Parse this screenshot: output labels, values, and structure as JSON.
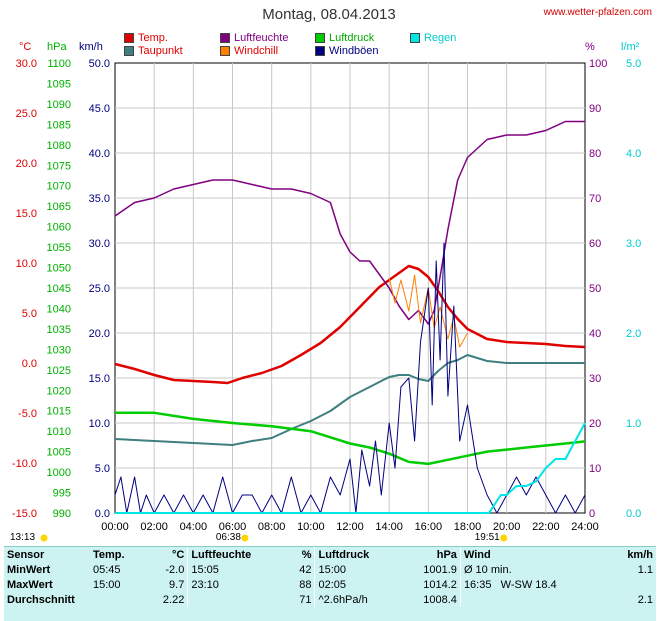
{
  "header": {
    "title": "Montag, 08.04.2013",
    "site": "www.wetter-pfalzen.com"
  },
  "legend": [
    {
      "label": "Temp.",
      "color": "#e00000"
    },
    {
      "label": "Taupunkt",
      "color": "#3f7f7f"
    },
    {
      "label": "Luftfeuchte",
      "color": "#800080"
    },
    {
      "label": "Windchill",
      "color": "#ff8000"
    },
    {
      "label": "Luftdruck",
      "color": "#00cc00"
    },
    {
      "label": "Windböen",
      "color": "#000080"
    },
    {
      "label": "Regen",
      "color": "#00e5e5"
    }
  ],
  "axis_units": {
    "temp": "°C",
    "pressure": "hPa",
    "wind": "km/h",
    "humidity": "%",
    "rain": "l/m²"
  },
  "sun": {
    "sunrise": "06:38",
    "sunset": "19:51",
    "moonrise": "13:13"
  },
  "chart_data": {
    "type": "line",
    "x_ticks": [
      "00:00",
      "02:00",
      "04:00",
      "06:00",
      "08:00",
      "10:00",
      "12:00",
      "14:00",
      "16:00",
      "18:00",
      "20:00",
      "22:00",
      "24:00"
    ],
    "axes": {
      "temp": {
        "min": -15,
        "max": 30,
        "ticks": [
          "30.0",
          "25.0",
          "20.0",
          "15.0",
          "10.0",
          "5.0",
          "0.0",
          "-5.0",
          "-10.0",
          "-15.0"
        ],
        "color": "#e00000"
      },
      "pressure": {
        "min": 990,
        "max": 1100,
        "ticks": [
          "1100",
          "1095",
          "1090",
          "1085",
          "1080",
          "1075",
          "1070",
          "1065",
          "1060",
          "1055",
          "1050",
          "1045",
          "1040",
          "1035",
          "1030",
          "1025",
          "1020",
          "1015",
          "1010",
          "1005",
          "1000",
          "995",
          "990"
        ],
        "color": "#00b000"
      },
      "wind": {
        "min": 0,
        "max": 50,
        "ticks": [
          "50.0",
          "45.0",
          "40.0",
          "35.0",
          "30.0",
          "25.0",
          "20.0",
          "15.0",
          "10.0",
          "5.0",
          "0.0"
        ],
        "color": "#000080"
      },
      "humidity": {
        "min": 0,
        "max": 100,
        "ticks": [
          "100",
          "90",
          "80",
          "70",
          "60",
          "50",
          "40",
          "30",
          "20",
          "10",
          "0"
        ],
        "color": "#800080"
      },
      "rain": {
        "min": 0,
        "max": 5,
        "ticks": [
          "5.0",
          "4.0",
          "3.0",
          "2.0",
          "1.0",
          "0.0"
        ],
        "color": "#00cccc"
      }
    },
    "series": [
      {
        "name": "Temp.",
        "axis": "temp",
        "color": "#e00000",
        "width": 2.5,
        "x": [
          0,
          1,
          2,
          3,
          4,
          5,
          5.75,
          6.5,
          7.5,
          8.5,
          9.5,
          10.5,
          11.5,
          12.5,
          13.5,
          14.5,
          15,
          15.5,
          16,
          16.5,
          17,
          17.5,
          18,
          19,
          20,
          21,
          22,
          23,
          24
        ],
        "y": [
          -0.1,
          -0.6,
          -1.2,
          -1.7,
          -1.8,
          -1.9,
          -2.0,
          -1.5,
          -1.0,
          -0.3,
          0.8,
          2.0,
          3.6,
          5.6,
          7.6,
          9.0,
          9.7,
          9.4,
          8.6,
          7.2,
          5.6,
          4.4,
          3.4,
          2.4,
          2.1,
          2.0,
          1.9,
          1.7,
          1.6
        ]
      },
      {
        "name": "Taupunkt",
        "axis": "temp",
        "color": "#3f7f7f",
        "width": 2,
        "x": [
          0,
          2,
          4,
          6,
          7,
          8,
          9,
          10,
          11,
          12,
          13,
          14,
          14.5,
          15,
          15.5,
          16,
          16.5,
          17,
          17.5,
          18,
          19,
          20,
          21,
          22,
          23,
          24
        ],
        "y": [
          -7.6,
          -7.8,
          -8.0,
          -8.2,
          -7.8,
          -7.5,
          -6.6,
          -5.8,
          -4.8,
          -3.4,
          -2.4,
          -1.4,
          -1.2,
          -1.2,
          -1.6,
          -1.8,
          -0.8,
          0.0,
          0.3,
          0.8,
          0.2,
          0.0,
          0.0,
          0.0,
          0.0,
          0.0
        ]
      },
      {
        "name": "Luftfeuchte",
        "axis": "humidity",
        "color": "#800080",
        "width": 1.5,
        "x": [
          0,
          1,
          2,
          3,
          4,
          5,
          6,
          7,
          8,
          9,
          10,
          11,
          11.5,
          12,
          12.5,
          13,
          13.5,
          14,
          14.5,
          15,
          15.5,
          16,
          16.3,
          16.7,
          17,
          17.5,
          18,
          18.5,
          19,
          20,
          21,
          22,
          23,
          24
        ],
        "y": [
          66,
          69,
          70,
          72,
          73,
          74,
          74,
          73,
          72,
          72,
          71,
          69,
          62,
          58,
          56,
          56,
          53,
          50,
          46,
          43,
          45,
          42,
          45,
          55,
          63,
          74,
          79,
          81,
          83,
          84,
          84,
          85,
          87,
          87
        ]
      },
      {
        "name": "Windchill",
        "axis": "temp",
        "color": "#ff8000",
        "width": 1,
        "x": [
          14,
          14.3,
          14.6,
          15,
          15.3,
          15.6,
          16,
          16.3,
          16.6,
          17,
          17.3,
          17.6,
          18
        ],
        "y": [
          8.5,
          6.0,
          8.3,
          5.2,
          8.8,
          4.0,
          7.5,
          3.5,
          5.6,
          2.4,
          4.6,
          1.6,
          3.0
        ]
      },
      {
        "name": "Luftdruck",
        "axis": "pressure",
        "color": "#00cc00",
        "width": 2.5,
        "x": [
          0,
          2,
          4,
          6,
          8,
          10,
          11,
          12,
          13,
          14,
          15,
          16,
          17,
          18,
          19,
          20,
          21,
          22,
          23,
          24
        ],
        "y": [
          1014.5,
          1014.5,
          1013.0,
          1012.0,
          1011.2,
          1010.0,
          1008.5,
          1007.0,
          1006.0,
          1004.5,
          1002.5,
          1002.0,
          1003.0,
          1004.0,
          1005.0,
          1005.5,
          1006.0,
          1006.5,
          1007.0,
          1007.5
        ]
      },
      {
        "name": "Windböen",
        "axis": "wind",
        "color": "#000080",
        "width": 1,
        "x": [
          0,
          0.3,
          0.6,
          1,
          1.3,
          1.6,
          2,
          2.5,
          3,
          3.5,
          4,
          4.5,
          5,
          5.5,
          6,
          6.5,
          7,
          7.5,
          8,
          8.5,
          9,
          9.5,
          10,
          10.5,
          11,
          11.5,
          12,
          12.3,
          12.6,
          13,
          13.3,
          13.6,
          14,
          14.3,
          14.6,
          15,
          15.3,
          15.6,
          16,
          16.2,
          16.4,
          16.6,
          16.8,
          17,
          17.3,
          17.6,
          18,
          18.5,
          19,
          19.5,
          20,
          20.5,
          21,
          21.5,
          22,
          22.5,
          23,
          23.5,
          24
        ],
        "y": [
          2,
          4,
          0,
          4,
          0,
          2,
          0,
          2,
          0,
          2,
          0,
          2,
          0,
          4,
          0,
          2,
          2,
          0,
          2,
          0,
          4,
          0,
          2,
          0,
          4,
          2,
          6,
          0,
          7,
          3,
          8,
          2,
          10,
          5,
          14,
          15,
          8,
          19,
          25,
          12,
          28,
          17,
          30,
          13,
          23,
          8,
          12,
          5,
          2,
          0,
          2,
          4,
          2,
          4,
          2,
          0,
          2,
          0,
          2
        ]
      },
      {
        "name": "Regen",
        "axis": "rain",
        "color": "#00e5e5",
        "width": 2,
        "x": [
          0,
          19.1,
          19.4,
          19.7,
          20,
          20.5,
          21,
          21.5,
          22,
          22.5,
          23,
          23.5,
          24
        ],
        "y": [
          0,
          0,
          0.1,
          0.2,
          0.2,
          0.3,
          0.3,
          0.35,
          0.5,
          0.6,
          0.6,
          0.8,
          1.0
        ]
      }
    ]
  },
  "stats": {
    "headers": [
      "Sensor",
      "Temp.",
      "°C",
      "Luftfeuchte",
      "%",
      "Luftdruck",
      "hPa",
      "Wind",
      "km/h"
    ],
    "rows": [
      [
        "MinWert",
        "05:45",
        "-2.0",
        "15:05",
        "42",
        "15:00",
        "1001.9",
        "Ø 10 min.",
        "1.1"
      ],
      [
        "MaxWert",
        "15:00",
        "9.7",
        "23:10",
        "88",
        "02:05",
        "1014.2",
        "16:35   W-SW 18.4",
        ""
      ],
      [
        "Durchschnitt",
        "",
        "2.22",
        "",
        "71",
        "^2.6hPa/h",
        "1008.4",
        "",
        "2.1"
      ]
    ]
  }
}
